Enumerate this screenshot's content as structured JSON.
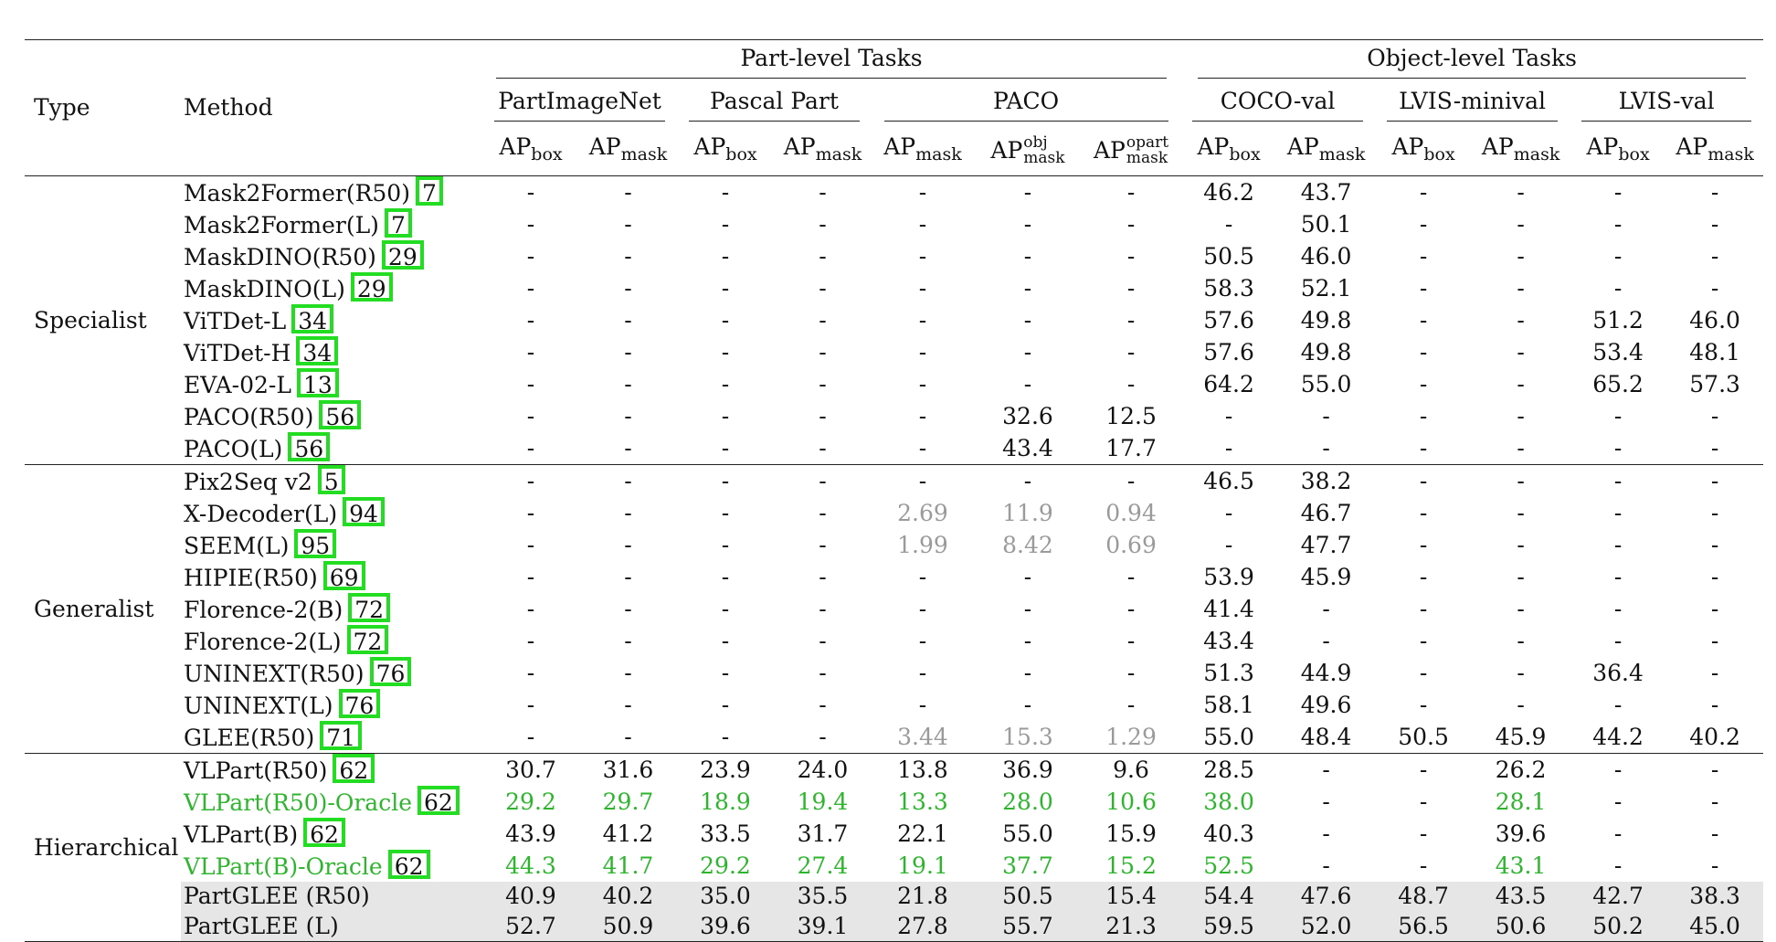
{
  "header": {
    "type_label": "Type",
    "method_label": "Method",
    "part_level": "Part-level Tasks",
    "object_level": "Object-level Tasks",
    "datasets": [
      "PartImageNet",
      "Pascal Part",
      "PACO",
      "COCO-val",
      "LVIS-minival",
      "LVIS-val"
    ],
    "ap": "AP",
    "box": "box",
    "mask": "mask",
    "obj": "obj",
    "opart": "opart"
  },
  "groups": [
    {
      "name": "Specialist"
    },
    {
      "name": "Generalist"
    },
    {
      "name": "Hierarchical"
    }
  ],
  "rows": [
    {
      "method": "Mask2Former(R50)",
      "cite": "7",
      "cells": [
        "-",
        "-",
        "-",
        "-",
        "-",
        "-",
        "-",
        "46.2",
        "43.7",
        "-",
        "-",
        "-",
        "-"
      ]
    },
    {
      "method": "Mask2Former(L)",
      "cite": "7",
      "cells": [
        "-",
        "-",
        "-",
        "-",
        "-",
        "-",
        "-",
        "-",
        "50.1",
        "-",
        "-",
        "-",
        "-"
      ]
    },
    {
      "method": "MaskDINO(R50)",
      "cite": "29",
      "cells": [
        "-",
        "-",
        "-",
        "-",
        "-",
        "-",
        "-",
        "50.5",
        "46.0",
        "-",
        "-",
        "-",
        "-"
      ]
    },
    {
      "method": "MaskDINO(L)",
      "cite": "29",
      "cells": [
        "-",
        "-",
        "-",
        "-",
        "-",
        "-",
        "-",
        "58.3",
        "52.1",
        "-",
        "-",
        "-",
        "-"
      ]
    },
    {
      "method": "ViTDet-L",
      "cite": "34",
      "cells": [
        "-",
        "-",
        "-",
        "-",
        "-",
        "-",
        "-",
        "57.6",
        "49.8",
        "-",
        "-",
        "51.2",
        "46.0"
      ]
    },
    {
      "method": "ViTDet-H",
      "cite": "34",
      "cells": [
        "-",
        "-",
        "-",
        "-",
        "-",
        "-",
        "-",
        "57.6",
        "49.8",
        "-",
        "-",
        "53.4",
        "48.1"
      ]
    },
    {
      "method": "EVA-02-L",
      "cite": "13",
      "cells": [
        "-",
        "-",
        "-",
        "-",
        "-",
        "-",
        "-",
        "64.2",
        "55.0",
        "-",
        "-",
        "65.2",
        "57.3"
      ]
    },
    {
      "method": "PACO(R50)",
      "cite": "56",
      "cells": [
        "-",
        "-",
        "-",
        "-",
        "-",
        "32.6",
        "12.5",
        "-",
        "-",
        "-",
        "-",
        "-",
        "-"
      ]
    },
    {
      "method": "PACO(L)",
      "cite": "56",
      "cells": [
        "-",
        "-",
        "-",
        "-",
        "-",
        "43.4",
        "17.7",
        "-",
        "-",
        "-",
        "-",
        "-",
        "-"
      ]
    },
    {
      "method": "Pix2Seq v2",
      "cite": "5",
      "cells": [
        "-",
        "-",
        "-",
        "-",
        "-",
        "-",
        "-",
        "46.5",
        "38.2",
        "-",
        "-",
        "-",
        "-"
      ]
    },
    {
      "method": "X-Decoder(L)",
      "cite": "94",
      "cells": [
        "-",
        "-",
        "-",
        "-",
        "2.69",
        "11.9",
        "0.94",
        "-",
        "46.7",
        "-",
        "-",
        "-",
        "-"
      ]
    },
    {
      "method": "SEEM(L)",
      "cite": "95",
      "cells": [
        "-",
        "-",
        "-",
        "-",
        "1.99",
        "8.42",
        "0.69",
        "-",
        "47.7",
        "-",
        "-",
        "-",
        "-"
      ]
    },
    {
      "method": "HIPIE(R50)",
      "cite": "69",
      "cells": [
        "-",
        "-",
        "-",
        "-",
        "-",
        "-",
        "-",
        "53.9",
        "45.9",
        "-",
        "-",
        "-",
        "-"
      ]
    },
    {
      "method": "Florence-2(B)",
      "cite": "72",
      "cells": [
        "-",
        "-",
        "-",
        "-",
        "-",
        "-",
        "-",
        "41.4",
        "-",
        "-",
        "-",
        "-",
        "-"
      ]
    },
    {
      "method": "Florence-2(L)",
      "cite": "72",
      "cells": [
        "-",
        "-",
        "-",
        "-",
        "-",
        "-",
        "-",
        "43.4",
        "-",
        "-",
        "-",
        "-",
        "-"
      ]
    },
    {
      "method": "UNINEXT(R50)",
      "cite": "76",
      "cells": [
        "-",
        "-",
        "-",
        "-",
        "-",
        "-",
        "-",
        "51.3",
        "44.9",
        "-",
        "-",
        "36.4",
        "-"
      ]
    },
    {
      "method": "UNINEXT(L)",
      "cite": "76",
      "cells": [
        "-",
        "-",
        "-",
        "-",
        "-",
        "-",
        "-",
        "58.1",
        "49.6",
        "-",
        "-",
        "-",
        "-"
      ]
    },
    {
      "method": "GLEE(R50)",
      "cite": "71",
      "cells": [
        "-",
        "-",
        "-",
        "-",
        "3.44",
        "15.3",
        "1.29",
        "55.0",
        "48.4",
        "50.5",
        "45.9",
        "44.2",
        "40.2"
      ]
    },
    {
      "method": "VLPart(R50)",
      "cite": "62",
      "cells": [
        "30.7",
        "31.6",
        "23.9",
        "24.0",
        "13.8",
        "36.9",
        "9.6",
        "28.5",
        "-",
        "-",
        "26.2",
        "-",
        "-"
      ]
    },
    {
      "method": "VLPart(R50)-Oracle",
      "cite": "62",
      "cells": [
        "29.2",
        "29.7",
        "18.9",
        "19.4",
        "13.3",
        "28.0",
        "10.6",
        "38.0",
        "-",
        "-",
        "28.1",
        "-",
        "-"
      ]
    },
    {
      "method": "VLPart(B)",
      "cite": "62",
      "cells": [
        "43.9",
        "41.2",
        "33.5",
        "31.7",
        "22.1",
        "55.0",
        "15.9",
        "40.3",
        "-",
        "-",
        "39.6",
        "-",
        "-"
      ]
    },
    {
      "method": "VLPart(B)-Oracle",
      "cite": "62",
      "cells": [
        "44.3",
        "41.7",
        "29.2",
        "27.4",
        "19.1",
        "37.7",
        "15.2",
        "52.5",
        "-",
        "-",
        "43.1",
        "-",
        "-"
      ]
    },
    {
      "method": "PartGLEE (R50)",
      "cite": "",
      "cells": [
        "40.9",
        "40.2",
        "35.0",
        "35.5",
        "21.8",
        "50.5",
        "15.4",
        "54.4",
        "47.6",
        "48.7",
        "43.5",
        "42.7",
        "38.3"
      ]
    },
    {
      "method": "PartGLEE (L)",
      "cite": "",
      "cells": [
        "52.7",
        "50.9",
        "39.6",
        "39.1",
        "27.8",
        "55.7",
        "21.3",
        "59.5",
        "52.0",
        "56.5",
        "50.6",
        "50.2",
        "45.0"
      ]
    }
  ]
}
